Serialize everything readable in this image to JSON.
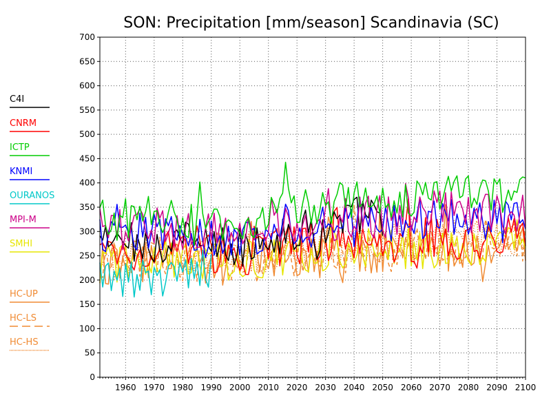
{
  "chart_data": {
    "type": "line",
    "title": "SON: Precipitation [mm/season] Scandinavia (SC)",
    "xlabel": "",
    "ylabel": "",
    "xlim": [
      1951,
      2100
    ],
    "ylim": [
      0,
      700
    ],
    "x_ticks": [
      "1960",
      "1970",
      "1980",
      "1990",
      "2000",
      "2010",
      "2020",
      "2030",
      "2040",
      "2050",
      "2060",
      "2070",
      "2080",
      "2090",
      "2100"
    ],
    "y_ticks": [
      "0",
      "50",
      "100",
      "150",
      "200",
      "250",
      "300",
      "350",
      "400",
      "450",
      "500",
      "550",
      "600",
      "650",
      "700"
    ],
    "grid": true,
    "legend_position": "left",
    "series": [
      {
        "name": "C4I",
        "color": "#000000",
        "dash": "solid",
        "start": 1951,
        "end": 2050,
        "anchors": [
          [
            1951,
            280
          ],
          [
            1970,
            275
          ],
          [
            1990,
            270
          ],
          [
            2000,
            265
          ],
          [
            2010,
            285
          ],
          [
            2020,
            300
          ],
          [
            2030,
            305
          ],
          [
            2040,
            330
          ],
          [
            2050,
            335
          ]
        ]
      },
      {
        "name": "CNRM",
        "color": "#ff0000",
        "dash": "solid",
        "start": 1951,
        "end": 2100,
        "anchors": [
          [
            1951,
            255
          ],
          [
            1970,
            260
          ],
          [
            1990,
            255
          ],
          [
            2000,
            250
          ],
          [
            2010,
            265
          ],
          [
            2020,
            270
          ],
          [
            2030,
            275
          ],
          [
            2050,
            280
          ],
          [
            2070,
            285
          ],
          [
            2090,
            285
          ],
          [
            2100,
            290
          ]
        ]
      },
      {
        "name": "ICTP",
        "color": "#00cc00",
        "dash": "solid",
        "start": 1951,
        "end": 2100,
        "anchors": [
          [
            1951,
            325
          ],
          [
            1970,
            330
          ],
          [
            1990,
            320
          ],
          [
            2000,
            315
          ],
          [
            2010,
            340
          ],
          [
            2020,
            355
          ],
          [
            2030,
            360
          ],
          [
            2050,
            365
          ],
          [
            2070,
            380
          ],
          [
            2080,
            385
          ],
          [
            2090,
            365
          ],
          [
            2100,
            370
          ]
        ]
      },
      {
        "name": "KNMI",
        "color": "#0000ff",
        "dash": "solid",
        "start": 1951,
        "end": 2100,
        "anchors": [
          [
            1951,
            295
          ],
          [
            1970,
            300
          ],
          [
            1990,
            290
          ],
          [
            2000,
            285
          ],
          [
            2010,
            300
          ],
          [
            2020,
            310
          ],
          [
            2030,
            310
          ],
          [
            2050,
            315
          ],
          [
            2070,
            325
          ],
          [
            2090,
            320
          ],
          [
            2100,
            325
          ]
        ]
      },
      {
        "name": "OURANOS",
        "color": "#00c8c8",
        "dash": "solid",
        "start": 1951,
        "end": 1990,
        "anchors": [
          [
            1951,
            200
          ],
          [
            1960,
            195
          ],
          [
            1970,
            215
          ],
          [
            1980,
            210
          ],
          [
            1990,
            225
          ]
        ]
      },
      {
        "name": "MPI-M",
        "color": "#cc0088",
        "dash": "solid",
        "start": 1951,
        "end": 2100,
        "anchors": [
          [
            1951,
            305
          ],
          [
            1970,
            310
          ],
          [
            1990,
            300
          ],
          [
            2000,
            295
          ],
          [
            2010,
            310
          ],
          [
            2020,
            320
          ],
          [
            2030,
            325
          ],
          [
            2050,
            330
          ],
          [
            2070,
            340
          ],
          [
            2090,
            335
          ],
          [
            2100,
            340
          ]
        ]
      },
      {
        "name": "SMHI",
        "color": "#e6e600",
        "dash": "solid",
        "start": 1951,
        "end": 2100,
        "anchors": [
          [
            1951,
            235
          ],
          [
            1970,
            240
          ],
          [
            1990,
            235
          ],
          [
            2000,
            245
          ],
          [
            2010,
            250
          ],
          [
            2020,
            255
          ],
          [
            2030,
            260
          ],
          [
            2050,
            265
          ],
          [
            2070,
            270
          ],
          [
            2090,
            280
          ],
          [
            2100,
            285
          ]
        ]
      },
      {
        "name": "HC-UP",
        "color": "#f08a32",
        "dash": "solid",
        "start": 1951,
        "end": 2100,
        "anchors": [
          [
            1951,
            230
          ],
          [
            1970,
            240
          ],
          [
            1990,
            230
          ],
          [
            2000,
            240
          ],
          [
            2010,
            245
          ],
          [
            2030,
            250
          ],
          [
            2050,
            255
          ],
          [
            2070,
            260
          ],
          [
            2090,
            265
          ],
          [
            2100,
            270
          ]
        ]
      },
      {
        "name": "HC-LS",
        "color": "#f08a32",
        "dash": "dashed",
        "start": 1951,
        "end": 2100,
        "anchors": [
          [
            1951,
            235
          ],
          [
            1970,
            245
          ],
          [
            1990,
            240
          ],
          [
            2000,
            245
          ],
          [
            2010,
            250
          ],
          [
            2030,
            255
          ],
          [
            2050,
            260
          ],
          [
            2070,
            265
          ],
          [
            2090,
            270
          ],
          [
            2100,
            275
          ]
        ]
      },
      {
        "name": "HC-HS",
        "color": "#f08a32",
        "dash": "dotted",
        "start": 1951,
        "end": 2100,
        "anchors": [
          [
            1951,
            245
          ],
          [
            1970,
            250
          ],
          [
            1990,
            245
          ],
          [
            2000,
            255
          ],
          [
            2010,
            260
          ],
          [
            2030,
            265
          ],
          [
            2050,
            270
          ],
          [
            2070,
            280
          ],
          [
            2090,
            285
          ],
          [
            2100,
            290
          ]
        ]
      }
    ]
  }
}
